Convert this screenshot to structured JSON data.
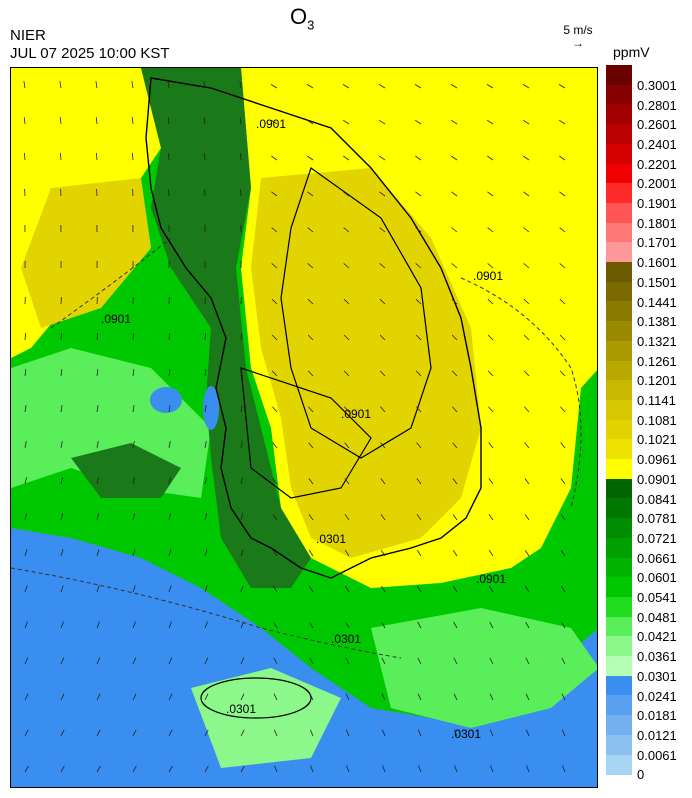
{
  "header": {
    "agency": "NIER",
    "datetime": "JUL 07 2025 10:00 KST",
    "title_main": "O",
    "title_sub": "3",
    "wind_reference": "5 m/s",
    "wind_arrow": "→",
    "unit": "ppmV"
  },
  "colorbar": {
    "labels": [
      "0.3001",
      "0.2801",
      "0.2601",
      "0.2401",
      "0.2201",
      "0.2001",
      "0.1901",
      "0.1801",
      "0.1701",
      "0.1601",
      "0.1501",
      "0.1441",
      "0.1381",
      "0.1321",
      "0.1261",
      "0.1201",
      "0.1141",
      "0.1081",
      "0.1021",
      "0.0961",
      "0.0901",
      "0.0841",
      "0.0781",
      "0.0721",
      "0.0661",
      "0.0601",
      "0.0541",
      "0.0481",
      "0.0421",
      "0.0361",
      "0.0301",
      "0.0241",
      "0.0181",
      "0.0121",
      "0.0061",
      "0"
    ],
    "colors": [
      "#6b0000",
      "#850000",
      "#a00000",
      "#bb0000",
      "#d40000",
      "#f00000",
      "#ff2a2a",
      "#ff5555",
      "#ff7777",
      "#ff9999",
      "#6b5a00",
      "#7a6a00",
      "#8a7a00",
      "#9a8a00",
      "#aa9a00",
      "#b8a800",
      "#c8b800",
      "#d6c800",
      "#e2d400",
      "#eee200",
      "#ffff00",
      "#006400",
      "#007800",
      "#008c00",
      "#00a000",
      "#00b400",
      "#00c800",
      "#1fdc1f",
      "#5aef5a",
      "#8cf88c",
      "#b4ffb4",
      "#3a8ef0",
      "#5aa0f0",
      "#74b0f0",
      "#8cc0f0",
      "#a8d4f4"
    ]
  },
  "map": {
    "contour_labels": [
      ".0901",
      ".0901",
      ".0901",
      ".0901",
      ".0901",
      ".0301",
      ".0301",
      ".0301",
      ".0301"
    ],
    "colors": {
      "yellow_high": "#e2d400",
      "yellow": "#ffff00",
      "olive": "#c8b800",
      "dark_green": "#1a7a1a",
      "green": "#00c800",
      "light_green": "#5aef5a",
      "pale_green": "#8cf88c",
      "blue": "#3a8ef0",
      "light_blue": "#5aa0f0"
    }
  }
}
